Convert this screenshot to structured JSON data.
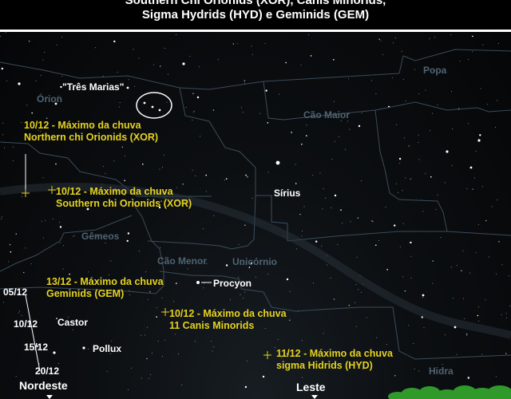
{
  "title": {
    "line1": "Southern Chi Orionids (XOR), Canis Minorids,",
    "line2": "Sigma Hydrids (HYD) e Geminids (GEM)"
  },
  "constellations": {
    "orion": "Órion",
    "popa": "Popa",
    "cao_maior": "Cão Maior",
    "gemeos": "Gêmeos",
    "cao_menor": "Cão Menor",
    "unicornio": "Unicórnio",
    "hidra": "Hidra"
  },
  "asterism": "\"Três Marias\"",
  "stars": {
    "sirius": "Sírius",
    "procyon": "Procyon",
    "castor": "Castor",
    "pollux": "Pollux"
  },
  "showers": {
    "xor_north": {
      "line1": "10/12 - Máximo da chuva",
      "line2": "Northern chi Orionids (XOR)"
    },
    "xor_south": {
      "line1": "10/12 - Máximo da chuva",
      "line2": "Southern chi Orionids (XOR)"
    },
    "gem": {
      "line1": "13/12 - Máximo da chuva",
      "line2": "Geminids (GEM)"
    },
    "cmi": {
      "line1": "10/12 - Máximo da chuva",
      "line2": "11 Canis Minorids"
    },
    "hyd": {
      "line1": "11/12 - Máximo da chuva",
      "line2": "sigma Hidrids (HYD)"
    }
  },
  "radiant_dates": [
    "05/12",
    "10/12",
    "15/12",
    "20/12"
  ],
  "directions": {
    "northeast": "Nordeste",
    "east": "Leste"
  },
  "colors": {
    "shower_text": "#e6d21e",
    "constellation_text": "#4f6372",
    "constellation_lines": "#3a4c5a",
    "horizon_trees": "#2f9a2a"
  }
}
